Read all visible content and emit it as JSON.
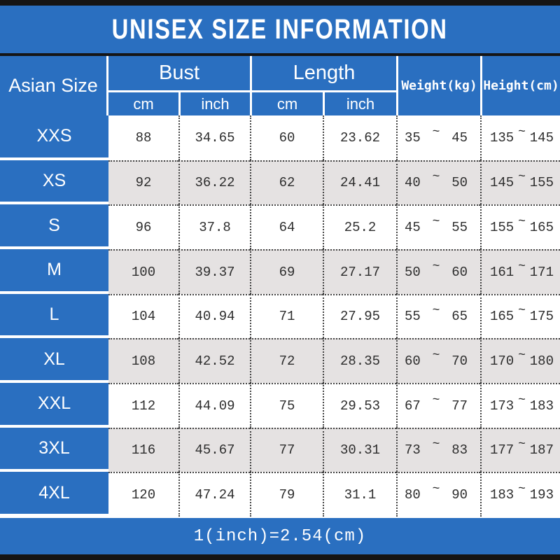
{
  "title": "UNISEX SIZE INFORMATION",
  "footer_note": "1(inch)=2.54(cm)",
  "colors": {
    "blue": "#2a6fc0",
    "bar_black": "#151515",
    "row_alt": "#e5e2e2",
    "text_dark": "#2d2d2d",
    "dotted": "#444444"
  },
  "table": {
    "size_header": "Asian Size",
    "groups": [
      {
        "label": "Bust",
        "sub": [
          "cm",
          "inch"
        ]
      },
      {
        "label": "Length",
        "sub": [
          "cm",
          "inch"
        ]
      }
    ],
    "weight_header": "Weight(kg)",
    "height_header": "Height(cm)",
    "tilde": "~",
    "rows": [
      {
        "size": "XXS",
        "bust_cm": "88",
        "bust_inch": "34.65",
        "length_cm": "60",
        "length_inch": "23.62",
        "weight_min": "35",
        "weight_max": "45",
        "height_min": "135",
        "height_max": "145"
      },
      {
        "size": "XS",
        "bust_cm": "92",
        "bust_inch": "36.22",
        "length_cm": "62",
        "length_inch": "24.41",
        "weight_min": "40",
        "weight_max": "50",
        "height_min": "145",
        "height_max": "155"
      },
      {
        "size": "S",
        "bust_cm": "96",
        "bust_inch": "37.8",
        "length_cm": "64",
        "length_inch": "25.2",
        "weight_min": "45",
        "weight_max": "55",
        "height_min": "155",
        "height_max": "165"
      },
      {
        "size": "M",
        "bust_cm": "100",
        "bust_inch": "39.37",
        "length_cm": "69",
        "length_inch": "27.17",
        "weight_min": "50",
        "weight_max": "60",
        "height_min": "161",
        "height_max": "171"
      },
      {
        "size": "L",
        "bust_cm": "104",
        "bust_inch": "40.94",
        "length_cm": "71",
        "length_inch": "27.95",
        "weight_min": "55",
        "weight_max": "65",
        "height_min": "165",
        "height_max": "175"
      },
      {
        "size": "XL",
        "bust_cm": "108",
        "bust_inch": "42.52",
        "length_cm": "72",
        "length_inch": "28.35",
        "weight_min": "60",
        "weight_max": "70",
        "height_min": "170",
        "height_max": "180"
      },
      {
        "size": "XXL",
        "bust_cm": "112",
        "bust_inch": "44.09",
        "length_cm": "75",
        "length_inch": "29.53",
        "weight_min": "67",
        "weight_max": "77",
        "height_min": "173",
        "height_max": "183"
      },
      {
        "size": "3XL",
        "bust_cm": "116",
        "bust_inch": "45.67",
        "length_cm": "77",
        "length_inch": "30.31",
        "weight_min": "73",
        "weight_max": "83",
        "height_min": "177",
        "height_max": "187"
      },
      {
        "size": "4XL",
        "bust_cm": "120",
        "bust_inch": "47.24",
        "length_cm": "79",
        "length_inch": "31.1",
        "weight_min": "80",
        "weight_max": "90",
        "height_min": "183",
        "height_max": "193"
      }
    ]
  }
}
